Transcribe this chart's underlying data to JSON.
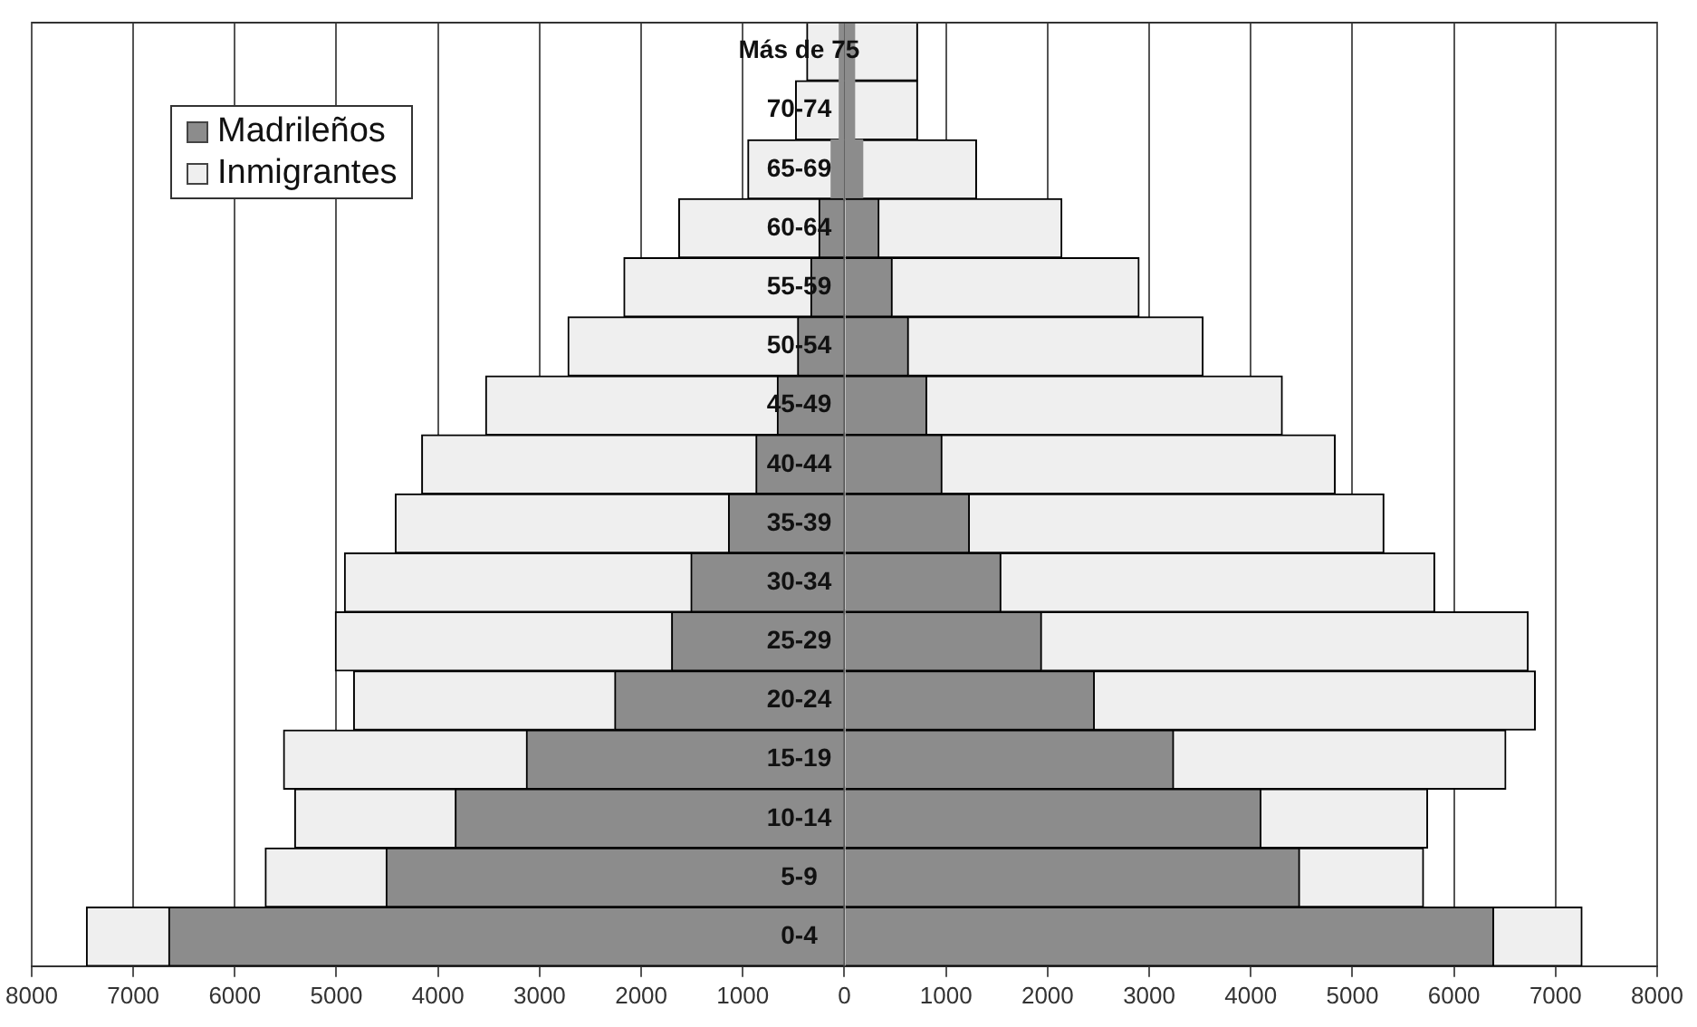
{
  "chart_data": {
    "type": "bar",
    "orientation": "horizontal",
    "stacked": true,
    "categories": [
      "Más de 75",
      "70-74",
      "65-69",
      "60-64",
      "55-59",
      "50-54",
      "45-49",
      "40-44",
      "35-39",
      "30-34",
      "25-29",
      "20-24",
      "15-19",
      "10-14",
      "5-9",
      "0-4"
    ],
    "series": [
      {
        "name": "Madrileños",
        "color": "#8c8c8c",
        "values": [
          -50,
          -50,
          -130,
          -250,
          -330,
          -460,
          -660,
          -870,
          -1140,
          -1510,
          -1700,
          -2260,
          -3130,
          -3830,
          -4510,
          -6650
        ]
      },
      {
        "name": "Inmigrantes",
        "color": "#efefef",
        "values": [
          -320,
          -430,
          -820,
          -1380,
          -1840,
          -2260,
          -2870,
          -3290,
          -3280,
          -3410,
          -3310,
          -2570,
          -2390,
          -1580,
          -1190,
          -810
        ]
      },
      {
        "color": "#8c8c8c",
        "values": [
          100,
          100,
          180,
          340,
          470,
          630,
          810,
          960,
          1230,
          1540,
          1940,
          2460,
          3240,
          4100,
          4480,
          6390
        ]
      },
      {
        "color": "#efefef",
        "values": [
          620,
          620,
          1120,
          1800,
          2430,
          2900,
          3500,
          3870,
          4080,
          4270,
          4790,
          4340,
          3270,
          1640,
          1220,
          870
        ]
      }
    ],
    "xlim": [
      -8000,
      8000
    ],
    "xticks": [
      {
        "value": -8000,
        "label": "8000"
      },
      {
        "value": -7000,
        "label": "7000"
      },
      {
        "value": -6000,
        "label": "6000"
      },
      {
        "value": -5000,
        "label": "5000"
      },
      {
        "value": -4000,
        "label": "4000"
      },
      {
        "value": -3000,
        "label": "3000"
      },
      {
        "value": -2000,
        "label": "2000"
      },
      {
        "value": -1000,
        "label": "1000"
      },
      0,
      1000,
      2000,
      3000,
      4000,
      5000,
      6000,
      7000,
      8000
    ],
    "grid": "x",
    "legend": "top left"
  }
}
